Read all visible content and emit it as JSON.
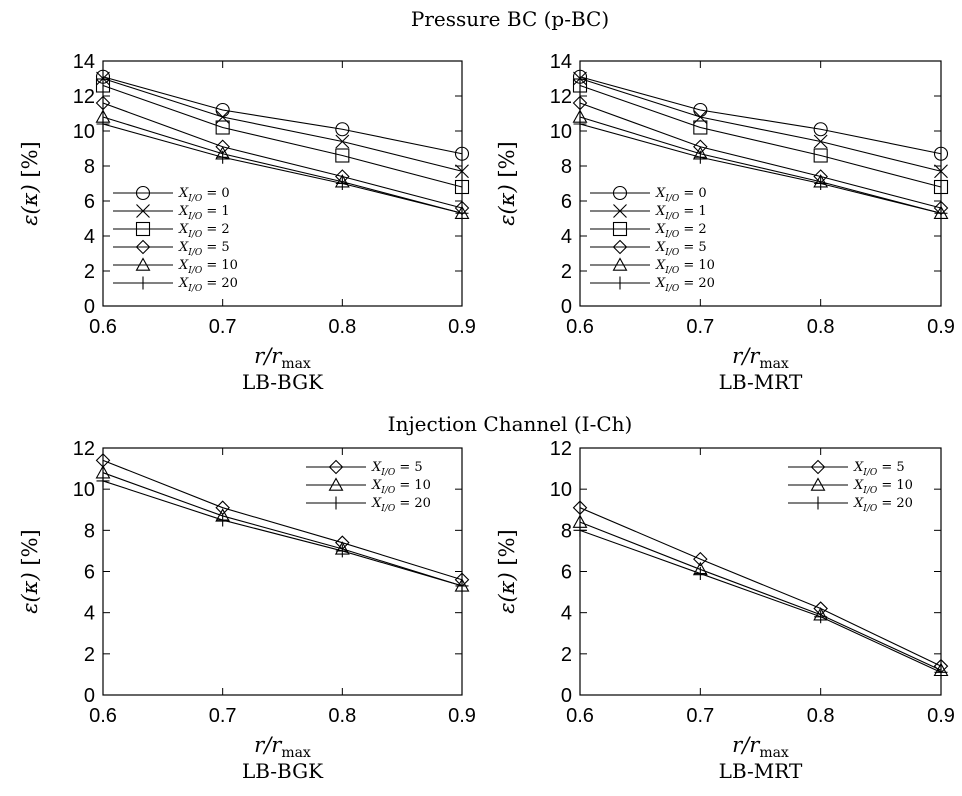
{
  "titles": {
    "top": "Pressure BC (p-BC)",
    "bottom": "Injection Channel (I-Ch)"
  },
  "axis_text": {
    "xlabel": "r/r_max",
    "ylabel": "ε(κ) [%]"
  },
  "chart_data": [
    {
      "type": "line",
      "section": "Pressure BC (p-BC)",
      "panel": "LB-BGK",
      "xlabel": "r/r_max",
      "ylabel": "ε(κ) [%]",
      "x": [
        0.6,
        0.7,
        0.8,
        0.9
      ],
      "xlim": [
        0.6,
        0.9
      ],
      "ylim": [
        0,
        14
      ],
      "xticks": [
        "0.6",
        "0.7",
        "0.8",
        "0.9"
      ],
      "yticks": [
        "0",
        "2",
        "4",
        "6",
        "8",
        "10",
        "12",
        "14"
      ],
      "legend_position": "lower-left",
      "grid": false,
      "series": [
        {
          "name": "X_I/O = 0",
          "marker": "circle",
          "values": [
            13.1,
            11.2,
            10.1,
            8.7
          ]
        },
        {
          "name": "X_I/O = 1",
          "marker": "cross",
          "values": [
            13.0,
            10.8,
            9.4,
            7.7
          ]
        },
        {
          "name": "X_I/O = 2",
          "marker": "square",
          "values": [
            12.6,
            10.2,
            8.6,
            6.8
          ]
        },
        {
          "name": "X_I/O = 5",
          "marker": "diamond",
          "values": [
            11.6,
            9.1,
            7.4,
            5.6
          ]
        },
        {
          "name": "X_I/O = 10",
          "marker": "triangle",
          "values": [
            10.8,
            8.7,
            7.1,
            5.3
          ]
        },
        {
          "name": "X_I/O = 20",
          "marker": "plus",
          "values": [
            10.4,
            8.5,
            7.0,
            5.3
          ]
        }
      ]
    },
    {
      "type": "line",
      "section": "Pressure BC (p-BC)",
      "panel": "LB-MRT",
      "xlabel": "r/r_max",
      "ylabel": "ε(κ) [%]",
      "x": [
        0.6,
        0.7,
        0.8,
        0.9
      ],
      "xlim": [
        0.6,
        0.9
      ],
      "ylim": [
        0,
        14
      ],
      "xticks": [
        "0.6",
        "0.7",
        "0.8",
        "0.9"
      ],
      "yticks": [
        "0",
        "2",
        "4",
        "6",
        "8",
        "10",
        "12",
        "14"
      ],
      "legend_position": "lower-left",
      "grid": false,
      "series": [
        {
          "name": "X_I/O = 0",
          "marker": "circle",
          "values": [
            13.1,
            11.2,
            10.1,
            8.7
          ]
        },
        {
          "name": "X_I/O = 1",
          "marker": "cross",
          "values": [
            13.0,
            10.8,
            9.4,
            7.7
          ]
        },
        {
          "name": "X_I/O = 2",
          "marker": "square",
          "values": [
            12.6,
            10.2,
            8.6,
            6.8
          ]
        },
        {
          "name": "X_I/O = 5",
          "marker": "diamond",
          "values": [
            11.6,
            9.1,
            7.4,
            5.6
          ]
        },
        {
          "name": "X_I/O = 10",
          "marker": "triangle",
          "values": [
            10.8,
            8.7,
            7.1,
            5.3
          ]
        },
        {
          "name": "X_I/O = 20",
          "marker": "plus",
          "values": [
            10.4,
            8.5,
            7.0,
            5.3
          ]
        }
      ]
    },
    {
      "type": "line",
      "section": "Injection Channel (I-Ch)",
      "panel": "LB-BGK",
      "xlabel": "r/r_max",
      "ylabel": "ε(κ) [%]",
      "x": [
        0.6,
        0.7,
        0.8,
        0.9
      ],
      "xlim": [
        0.6,
        0.9
      ],
      "ylim": [
        0,
        12
      ],
      "xticks": [
        "0.6",
        "0.7",
        "0.8",
        "0.9"
      ],
      "yticks": [
        "0",
        "2",
        "4",
        "6",
        "8",
        "10",
        "12"
      ],
      "legend_position": "top-right",
      "grid": false,
      "series": [
        {
          "name": "X_I/O = 5",
          "marker": "diamond",
          "values": [
            11.4,
            9.1,
            7.4,
            5.6
          ]
        },
        {
          "name": "X_I/O = 10",
          "marker": "triangle",
          "values": [
            10.8,
            8.7,
            7.1,
            5.3
          ]
        },
        {
          "name": "X_I/O = 20",
          "marker": "plus",
          "values": [
            10.4,
            8.5,
            7.0,
            5.3
          ]
        }
      ]
    },
    {
      "type": "line",
      "section": "Injection Channel (I-Ch)",
      "panel": "LB-MRT",
      "xlabel": "r/r_max",
      "ylabel": "ε(κ) [%]",
      "x": [
        0.6,
        0.7,
        0.8,
        0.9
      ],
      "xlim": [
        0.6,
        0.9
      ],
      "ylim": [
        0,
        12
      ],
      "xticks": [
        "0.6",
        "0.7",
        "0.8",
        "0.9"
      ],
      "yticks": [
        "0",
        "2",
        "4",
        "6",
        "8",
        "10",
        "12"
      ],
      "legend_position": "top-right",
      "grid": false,
      "series": [
        {
          "name": "X_I/O = 5",
          "marker": "diamond",
          "values": [
            9.1,
            6.6,
            4.2,
            1.4
          ]
        },
        {
          "name": "X_I/O = 10",
          "marker": "triangle",
          "values": [
            8.4,
            6.1,
            3.9,
            1.2
          ]
        },
        {
          "name": "X_I/O = 20",
          "marker": "plus",
          "values": [
            8.0,
            5.9,
            3.8,
            1.1
          ]
        }
      ]
    }
  ]
}
